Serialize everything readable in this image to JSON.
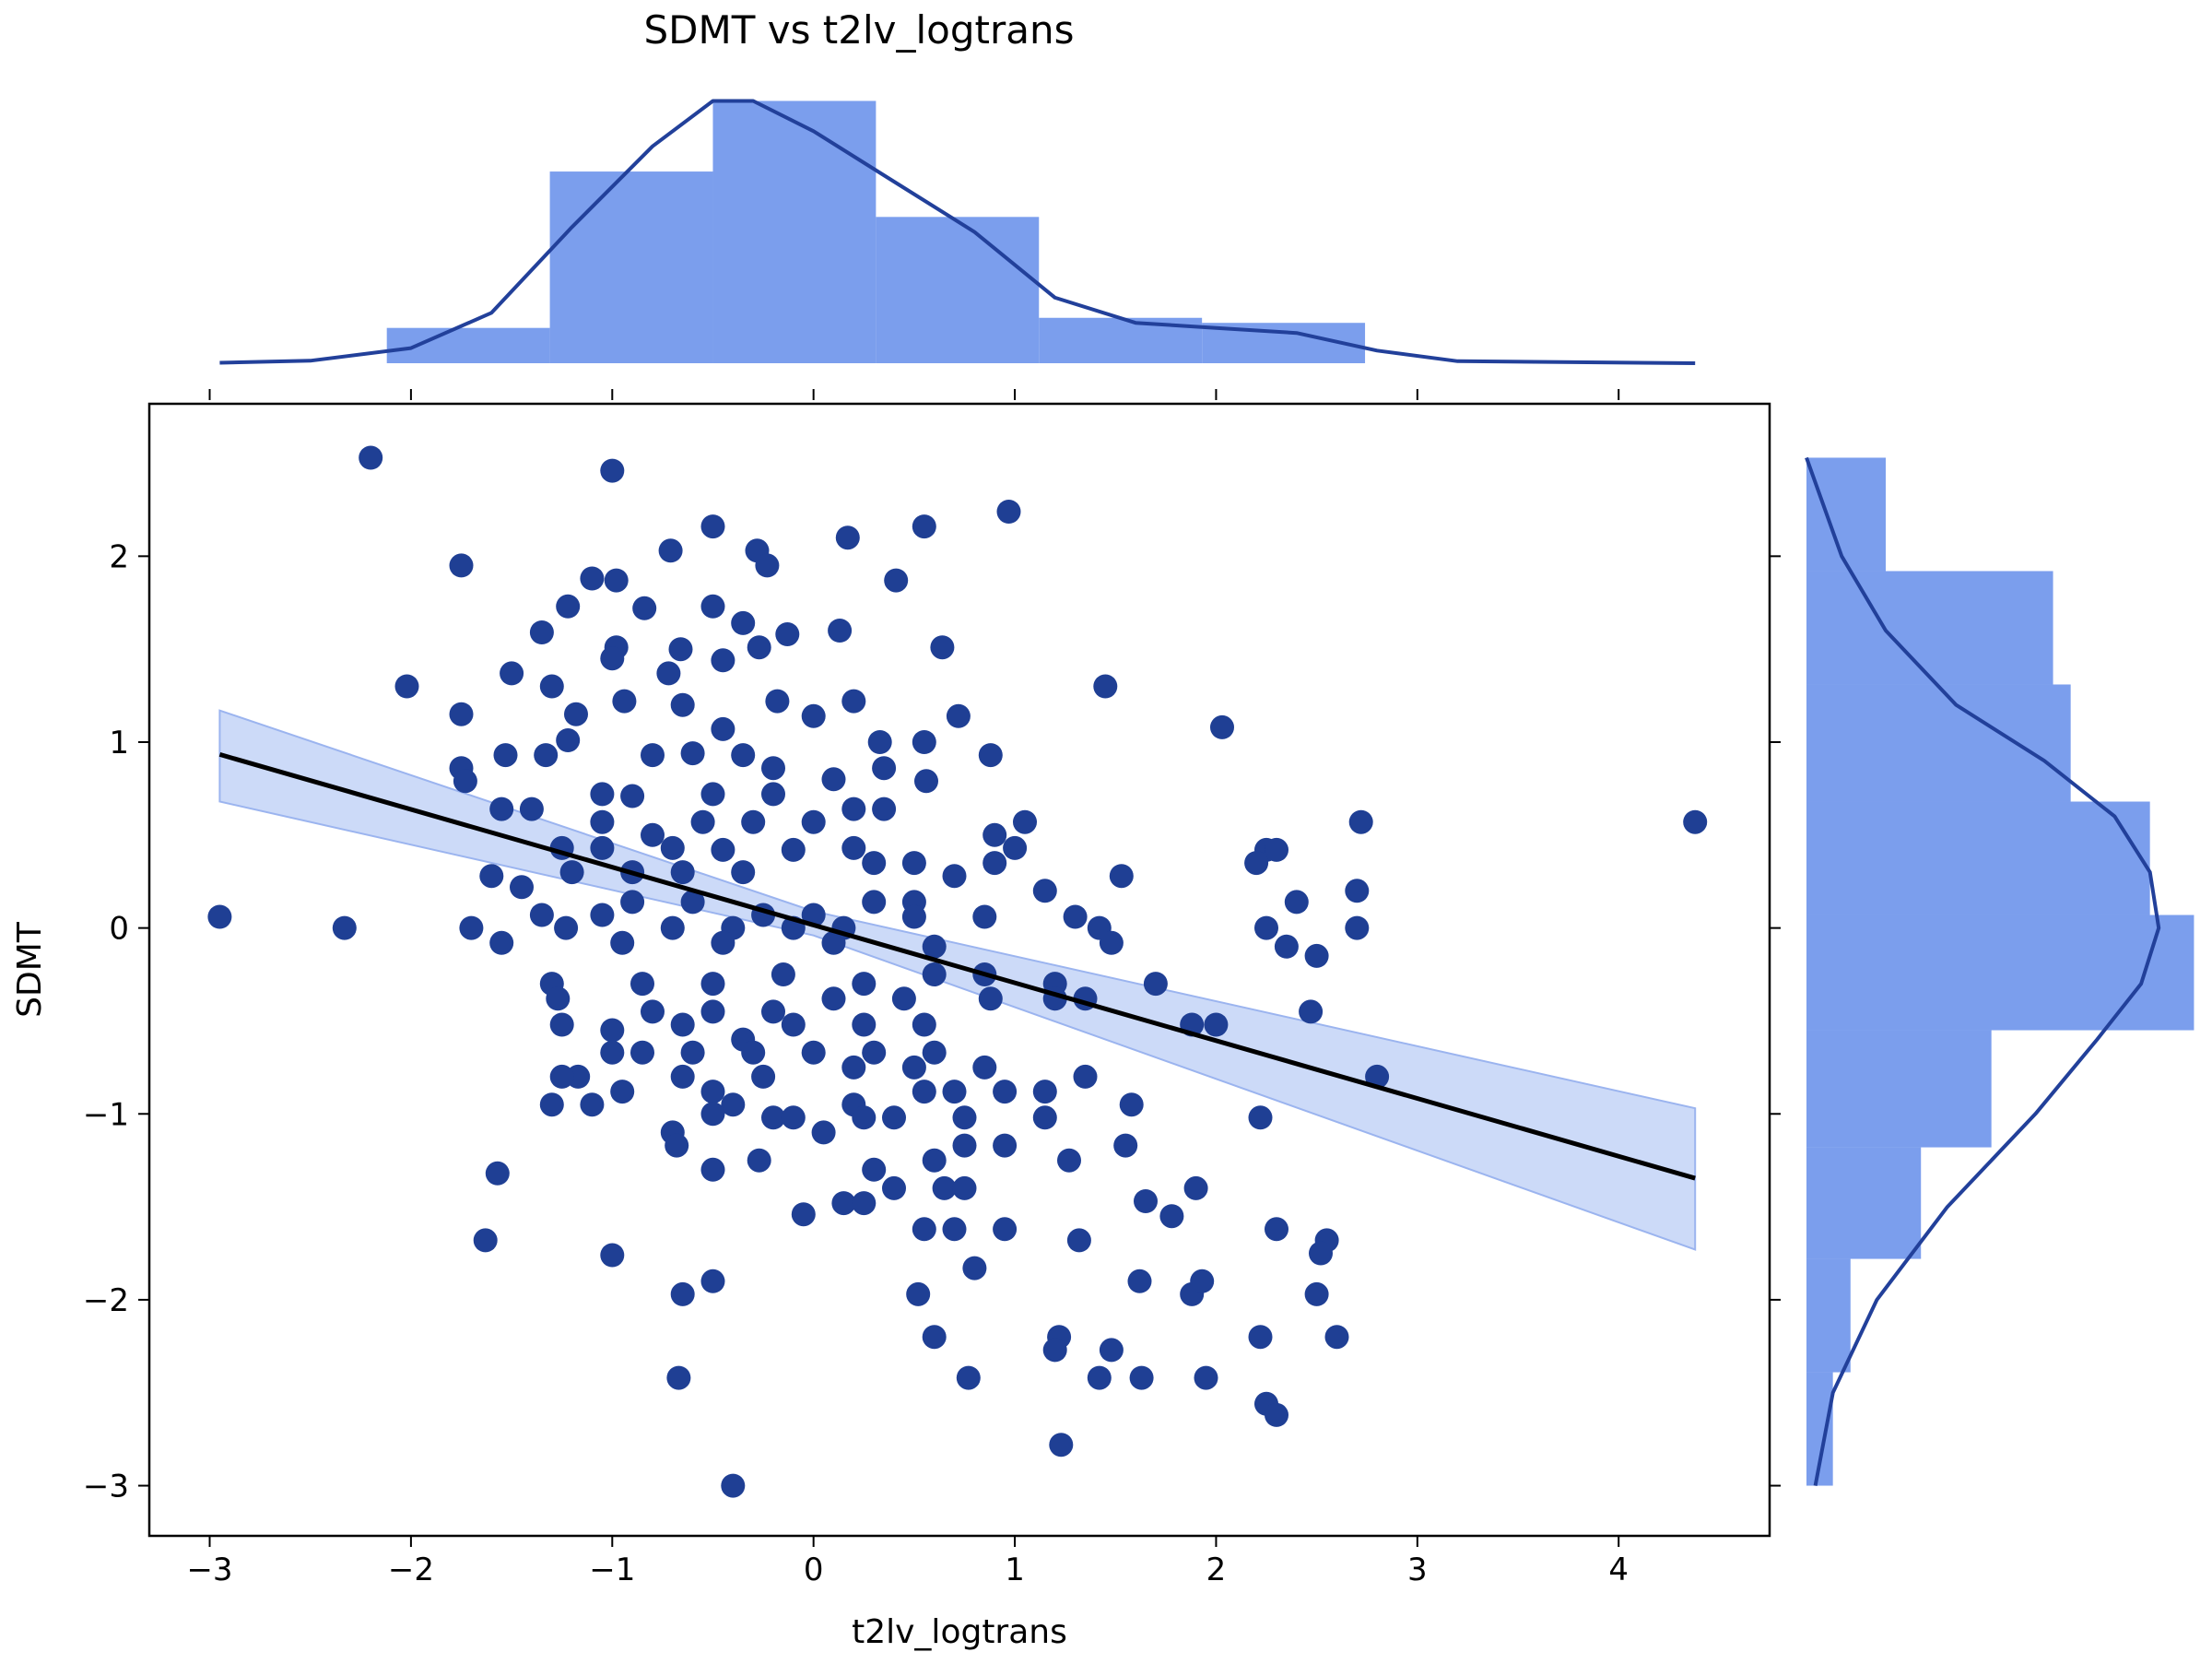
{
  "chart_data": {
    "type": "scatter",
    "title": "SDMT vs t2lv_logtrans",
    "xlabel": "t2lv_logtrans",
    "ylabel": "SDMT",
    "xlim": [
      -3.3,
      4.75
    ],
    "ylim": [
      -3.27,
      2.82
    ],
    "xticks": [
      -3,
      -2,
      -1,
      0,
      1,
      2,
      3,
      4
    ],
    "xtick_labels": [
      "−3",
      "−2",
      "−1",
      "0",
      "1",
      "2",
      "3",
      "4"
    ],
    "yticks": [
      -3,
      -2,
      -1,
      0,
      1,
      2
    ],
    "ytick_labels": [
      "−3",
      "−2",
      "−1",
      "0",
      "1",
      "2"
    ],
    "grid": false,
    "colors": {
      "points": "#1f3f94",
      "hist": "#7b9eed",
      "kde": "#22409a",
      "fit_line": "#000000",
      "ci_band": "#c7d6f7"
    },
    "regression": {
      "x_range": [
        -2.95,
        4.38
      ],
      "slope": -0.311,
      "intercept": 0.016,
      "ci_upper": [
        [
          -2.95,
          1.17
        ],
        [
          0.0,
          0.09
        ],
        [
          4.38,
          -0.97
        ]
      ],
      "ci_lower": [
        [
          -2.95,
          0.68
        ],
        [
          0.0,
          -0.04
        ],
        [
          4.38,
          -1.73
        ]
      ]
    },
    "top_histogram": {
      "bin_edges": [
        -2.12,
        -1.31,
        -0.5,
        0.31,
        1.12,
        1.93,
        2.74
      ],
      "density": [
        0.07,
        0.38,
        0.52,
        0.29,
        0.09,
        0.08
      ],
      "kde": [
        [
          -2.95,
          0.001
        ],
        [
          -2.5,
          0.005
        ],
        [
          -2.0,
          0.03
        ],
        [
          -1.6,
          0.1
        ],
        [
          -1.2,
          0.27
        ],
        [
          -0.8,
          0.43
        ],
        [
          -0.5,
          0.52
        ],
        [
          -0.3,
          0.52
        ],
        [
          0.0,
          0.46
        ],
        [
          0.4,
          0.36
        ],
        [
          0.8,
          0.26
        ],
        [
          1.2,
          0.13
        ],
        [
          1.6,
          0.08
        ],
        [
          2.0,
          0.07
        ],
        [
          2.4,
          0.06
        ],
        [
          2.8,
          0.025
        ],
        [
          3.2,
          0.004
        ],
        [
          4.38,
          0.0
        ]
      ]
    },
    "right_histogram": {
      "bin_edges": [
        -3.0,
        -2.39,
        -1.78,
        -1.18,
        -0.55,
        0.07,
        0.68,
        1.31,
        1.92,
        2.53
      ],
      "density": [
        0.03,
        0.05,
        0.13,
        0.21,
        0.44,
        0.39,
        0.3,
        0.28,
        0.09
      ],
      "kde": [
        [
          -3.0,
          0.01
        ],
        [
          -2.5,
          0.03
        ],
        [
          -2.0,
          0.08
        ],
        [
          -1.5,
          0.16
        ],
        [
          -1.0,
          0.26
        ],
        [
          -0.6,
          0.33
        ],
        [
          -0.3,
          0.38
        ],
        [
          0.0,
          0.4
        ],
        [
          0.3,
          0.39
        ],
        [
          0.6,
          0.35
        ],
        [
          0.9,
          0.27
        ],
        [
          1.2,
          0.17
        ],
        [
          1.6,
          0.09
        ],
        [
          2.0,
          0.04
        ],
        [
          2.53,
          0.0
        ]
      ]
    },
    "points": [
      [
        -2.2,
        2.53
      ],
      [
        -1.0,
        2.46
      ],
      [
        -0.5,
        2.16
      ],
      [
        0.55,
        2.16
      ],
      [
        0.97,
        2.24
      ],
      [
        -0.71,
        2.03
      ],
      [
        -0.28,
        2.03
      ],
      [
        0.17,
        2.1
      ],
      [
        -1.75,
        1.95
      ],
      [
        -0.23,
        1.95
      ],
      [
        -1.1,
        1.88
      ],
      [
        -0.98,
        1.87
      ],
      [
        0.41,
        1.87
      ],
      [
        -1.22,
        1.73
      ],
      [
        -0.84,
        1.72
      ],
      [
        -0.5,
        1.73
      ],
      [
        -1.35,
        1.59
      ],
      [
        -0.35,
        1.64
      ],
      [
        -0.13,
        1.58
      ],
      [
        0.13,
        1.6
      ],
      [
        -0.98,
        1.51
      ],
      [
        -0.66,
        1.5
      ],
      [
        -0.27,
        1.51
      ],
      [
        0.64,
        1.51
      ],
      [
        -1.0,
        1.45
      ],
      [
        -0.72,
        1.37
      ],
      [
        -0.45,
        1.44
      ],
      [
        -1.5,
        1.37
      ],
      [
        -1.3,
        1.3
      ],
      [
        -2.02,
        1.3
      ],
      [
        1.45,
        1.3
      ],
      [
        -0.94,
        1.22
      ],
      [
        -0.65,
        1.2
      ],
      [
        -0.18,
        1.22
      ],
      [
        0.2,
        1.22
      ],
      [
        -1.75,
        1.15
      ],
      [
        -1.18,
        1.15
      ],
      [
        -0.45,
        1.07
      ],
      [
        0.0,
        1.14
      ],
      [
        0.72,
        1.14
      ],
      [
        2.03,
        1.08
      ],
      [
        -1.22,
        1.01
      ],
      [
        0.33,
        1.0
      ],
      [
        0.55,
        1.0
      ],
      [
        0.88,
        0.93
      ],
      [
        -1.53,
        0.93
      ],
      [
        -1.33,
        0.93
      ],
      [
        -0.8,
        0.93
      ],
      [
        -0.6,
        0.94
      ],
      [
        -0.35,
        0.93
      ],
      [
        -0.2,
        0.86
      ],
      [
        0.35,
        0.86
      ],
      [
        -1.75,
        0.86
      ],
      [
        -1.05,
        0.72
      ],
      [
        -0.9,
        0.71
      ],
      [
        -0.5,
        0.72
      ],
      [
        -0.2,
        0.72
      ],
      [
        0.1,
        0.8
      ],
      [
        0.56,
        0.79
      ],
      [
        -1.73,
        0.79
      ],
      [
        -1.55,
        0.64
      ],
      [
        -1.4,
        0.64
      ],
      [
        -1.05,
        0.57
      ],
      [
        -0.8,
        0.5
      ],
      [
        -0.55,
        0.57
      ],
      [
        -0.3,
        0.57
      ],
      [
        0.0,
        0.57
      ],
      [
        0.2,
        0.64
      ],
      [
        0.35,
        0.64
      ],
      [
        1.05,
        0.57
      ],
      [
        2.72,
        0.57
      ],
      [
        4.38,
        0.57
      ],
      [
        0.9,
        0.5
      ],
      [
        -1.25,
        0.43
      ],
      [
        -1.05,
        0.43
      ],
      [
        -0.7,
        0.43
      ],
      [
        -0.45,
        0.42
      ],
      [
        -0.1,
        0.42
      ],
      [
        0.2,
        0.43
      ],
      [
        1.0,
        0.43
      ],
      [
        2.25,
        0.42
      ],
      [
        2.3,
        0.42
      ],
      [
        -1.6,
        0.28
      ],
      [
        -1.45,
        0.22
      ],
      [
        -1.2,
        0.3
      ],
      [
        -0.9,
        0.3
      ],
      [
        -0.65,
        0.3
      ],
      [
        -0.35,
        0.3
      ],
      [
        0.3,
        0.35
      ],
      [
        0.5,
        0.35
      ],
      [
        0.7,
        0.28
      ],
      [
        0.9,
        0.35
      ],
      [
        1.53,
        0.28
      ],
      [
        2.2,
        0.35
      ],
      [
        -1.35,
        0.07
      ],
      [
        -1.05,
        0.07
      ],
      [
        -0.9,
        0.14
      ],
      [
        -0.6,
        0.14
      ],
      [
        -0.25,
        0.07
      ],
      [
        0.0,
        0.07
      ],
      [
        0.3,
        0.14
      ],
      [
        0.5,
        0.14
      ],
      [
        1.15,
        0.2
      ],
      [
        2.7,
        0.2
      ],
      [
        2.4,
        0.14
      ],
      [
        -2.95,
        0.06
      ],
      [
        -2.33,
        0.0
      ],
      [
        -1.7,
        0.0
      ],
      [
        -1.23,
        0.0
      ],
      [
        -0.7,
        0.0
      ],
      [
        -0.4,
        0.0
      ],
      [
        -0.1,
        0.0
      ],
      [
        0.15,
        0.0
      ],
      [
        0.5,
        0.06
      ],
      [
        0.85,
        0.06
      ],
      [
        1.3,
        0.06
      ],
      [
        1.42,
        0.0
      ],
      [
        2.25,
        0.0
      ],
      [
        2.7,
        0.0
      ],
      [
        -1.55,
        -0.08
      ],
      [
        -0.95,
        -0.08
      ],
      [
        -0.45,
        -0.08
      ],
      [
        0.1,
        -0.08
      ],
      [
        0.6,
        -0.1
      ],
      [
        1.48,
        -0.08
      ],
      [
        2.35,
        -0.1
      ],
      [
        2.5,
        -0.15
      ],
      [
        -1.3,
        -0.3
      ],
      [
        -0.85,
        -0.3
      ],
      [
        -0.5,
        -0.3
      ],
      [
        -0.15,
        -0.25
      ],
      [
        0.25,
        -0.3
      ],
      [
        0.6,
        -0.25
      ],
      [
        0.85,
        -0.25
      ],
      [
        1.2,
        -0.3
      ],
      [
        1.7,
        -0.3
      ],
      [
        -1.27,
        -0.38
      ],
      [
        -0.8,
        -0.45
      ],
      [
        -0.5,
        -0.45
      ],
      [
        -0.2,
        -0.45
      ],
      [
        0.1,
        -0.38
      ],
      [
        0.45,
        -0.38
      ],
      [
        0.88,
        -0.38
      ],
      [
        1.2,
        -0.38
      ],
      [
        1.35,
        -0.38
      ],
      [
        2.47,
        -0.45
      ],
      [
        -1.25,
        -0.52
      ],
      [
        -1.0,
        -0.55
      ],
      [
        -0.65,
        -0.52
      ],
      [
        -0.35,
        -0.6
      ],
      [
        -0.1,
        -0.52
      ],
      [
        0.25,
        -0.52
      ],
      [
        0.55,
        -0.52
      ],
      [
        1.88,
        -0.52
      ],
      [
        2.0,
        -0.52
      ],
      [
        -1.0,
        -0.67
      ],
      [
        -0.85,
        -0.67
      ],
      [
        -0.6,
        -0.67
      ],
      [
        -0.3,
        -0.67
      ],
      [
        0.0,
        -0.67
      ],
      [
        0.3,
        -0.67
      ],
      [
        0.6,
        -0.67
      ],
      [
        -1.17,
        -0.8
      ],
      [
        -1.25,
        -0.8
      ],
      [
        -0.65,
        -0.8
      ],
      [
        -0.25,
        -0.8
      ],
      [
        0.2,
        -0.75
      ],
      [
        0.5,
        -0.75
      ],
      [
        0.85,
        -0.75
      ],
      [
        1.35,
        -0.8
      ],
      [
        2.8,
        -0.8
      ],
      [
        -1.3,
        -0.95
      ],
      [
        -1.1,
        -0.95
      ],
      [
        -0.95,
        -0.88
      ],
      [
        -0.5,
        -0.88
      ],
      [
        -0.4,
        -0.95
      ],
      [
        0.2,
        -0.95
      ],
      [
        0.55,
        -0.88
      ],
      [
        0.7,
        -0.88
      ],
      [
        0.95,
        -0.88
      ],
      [
        1.15,
        -0.88
      ],
      [
        1.58,
        -0.95
      ],
      [
        -0.7,
        -1.1
      ],
      [
        -0.5,
        -1.0
      ],
      [
        -0.2,
        -1.02
      ],
      [
        -0.1,
        -1.02
      ],
      [
        0.05,
        -1.1
      ],
      [
        0.25,
        -1.02
      ],
      [
        0.4,
        -1.02
      ],
      [
        0.75,
        -1.02
      ],
      [
        1.15,
        -1.02
      ],
      [
        2.22,
        -1.02
      ],
      [
        -0.68,
        -1.17
      ],
      [
        -0.5,
        -1.3
      ],
      [
        -0.27,
        -1.25
      ],
      [
        0.3,
        -1.3
      ],
      [
        0.6,
        -1.25
      ],
      [
        0.75,
        -1.17
      ],
      [
        0.95,
        -1.17
      ],
      [
        1.55,
        -1.17
      ],
      [
        -1.57,
        -1.32
      ],
      [
        0.15,
        -1.48
      ],
      [
        0.4,
        -1.4
      ],
      [
        0.65,
        -1.4
      ],
      [
        0.75,
        -1.4
      ],
      [
        1.27,
        -1.25
      ],
      [
        1.65,
        -1.47
      ],
      [
        1.78,
        -1.55
      ],
      [
        1.9,
        -1.4
      ],
      [
        -0.05,
        -1.54
      ],
      [
        0.25,
        -1.48
      ],
      [
        0.55,
        -1.62
      ],
      [
        0.7,
        -1.62
      ],
      [
        0.95,
        -1.62
      ],
      [
        1.32,
        -1.68
      ],
      [
        2.3,
        -1.62
      ],
      [
        2.55,
        -1.68
      ],
      [
        -1.63,
        -1.68
      ],
      [
        -1.0,
        -1.76
      ],
      [
        0.8,
        -1.83
      ],
      [
        2.52,
        -1.75
      ],
      [
        -0.5,
        -1.9
      ],
      [
        -0.65,
        -1.97
      ],
      [
        0.52,
        -1.97
      ],
      [
        1.62,
        -1.9
      ],
      [
        1.88,
        -1.97
      ],
      [
        1.93,
        -1.9
      ],
      [
        2.5,
        -1.97
      ],
      [
        0.6,
        -2.2
      ],
      [
        1.22,
        -2.2
      ],
      [
        1.2,
        -2.27
      ],
      [
        1.48,
        -2.27
      ],
      [
        2.22,
        -2.2
      ],
      [
        2.6,
        -2.2
      ],
      [
        -0.67,
        -2.42
      ],
      [
        0.77,
        -2.42
      ],
      [
        1.42,
        -2.42
      ],
      [
        1.63,
        -2.42
      ],
      [
        1.95,
        -2.42
      ],
      [
        2.25,
        -2.56
      ],
      [
        2.3,
        -2.62
      ],
      [
        1.23,
        -2.78
      ],
      [
        -0.4,
        -3.0
      ]
    ]
  }
}
